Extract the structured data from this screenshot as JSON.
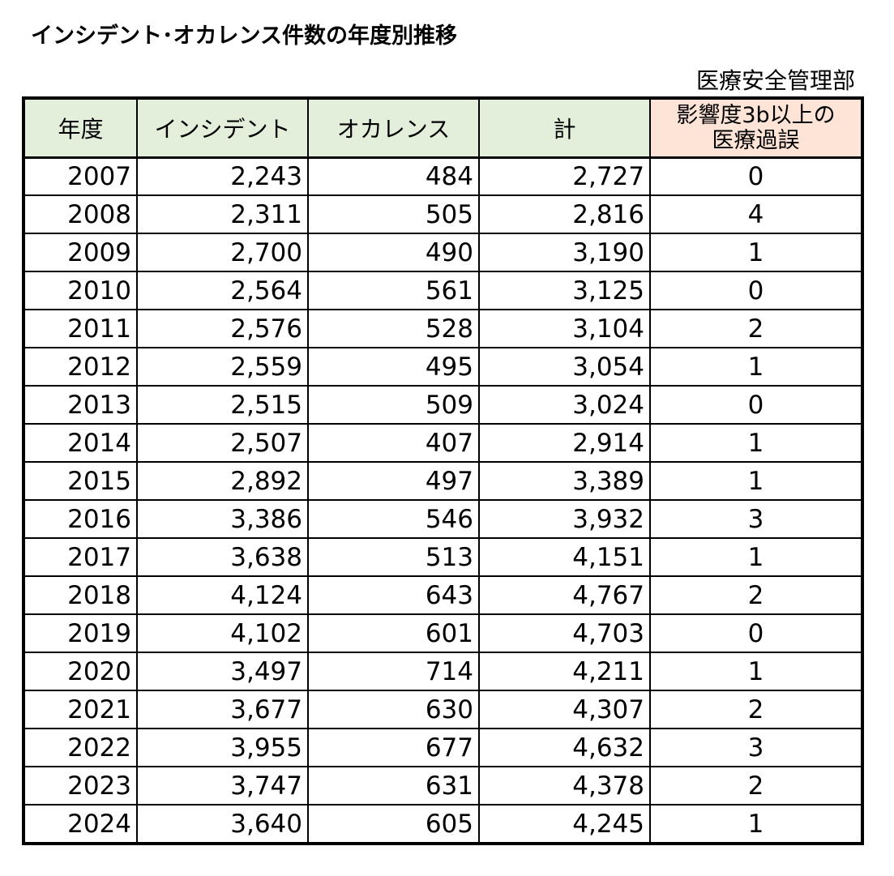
{
  "title": "インシデント･オカレンス件数の年度別推移",
  "department": "医療安全管理部",
  "table": {
    "headers": {
      "year": "年度",
      "incident": "インシデント",
      "occurrence": "オカレンス",
      "total": "計",
      "error_line1": "影響度3b以上の",
      "error_line2": "医療過誤"
    },
    "rows": [
      {
        "year": "2007",
        "incident": "2,243",
        "occurrence": "484",
        "total": "2,727",
        "error": "0"
      },
      {
        "year": "2008",
        "incident": "2,311",
        "occurrence": "505",
        "total": "2,816",
        "error": "4"
      },
      {
        "year": "2009",
        "incident": "2,700",
        "occurrence": "490",
        "total": "3,190",
        "error": "1"
      },
      {
        "year": "2010",
        "incident": "2,564",
        "occurrence": "561",
        "total": "3,125",
        "error": "0"
      },
      {
        "year": "2011",
        "incident": "2,576",
        "occurrence": "528",
        "total": "3,104",
        "error": "2"
      },
      {
        "year": "2012",
        "incident": "2,559",
        "occurrence": "495",
        "total": "3,054",
        "error": "1"
      },
      {
        "year": "2013",
        "incident": "2,515",
        "occurrence": "509",
        "total": "3,024",
        "error": "0"
      },
      {
        "year": "2014",
        "incident": "2,507",
        "occurrence": "407",
        "total": "2,914",
        "error": "1"
      },
      {
        "year": "2015",
        "incident": "2,892",
        "occurrence": "497",
        "total": "3,389",
        "error": "1"
      },
      {
        "year": "2016",
        "incident": "3,386",
        "occurrence": "546",
        "total": "3,932",
        "error": "3"
      },
      {
        "year": "2017",
        "incident": "3,638",
        "occurrence": "513",
        "total": "4,151",
        "error": "1"
      },
      {
        "year": "2018",
        "incident": "4,124",
        "occurrence": "643",
        "total": "4,767",
        "error": "2"
      },
      {
        "year": "2019",
        "incident": "4,102",
        "occurrence": "601",
        "total": "4,703",
        "error": "0"
      },
      {
        "year": "2020",
        "incident": "3,497",
        "occurrence": "714",
        "total": "4,211",
        "error": "1"
      },
      {
        "year": "2021",
        "incident": "3,677",
        "occurrence": "630",
        "total": "4,307",
        "error": "2"
      },
      {
        "year": "2022",
        "incident": "3,955",
        "occurrence": "677",
        "total": "4,632",
        "error": "3"
      },
      {
        "year": "2023",
        "incident": "3,747",
        "occurrence": "631",
        "total": "4,378",
        "error": "2"
      },
      {
        "year": "2024",
        "incident": "3,640",
        "occurrence": "605",
        "total": "4,245",
        "error": "1"
      }
    ]
  },
  "colors": {
    "header_green": "#e3efdb",
    "header_peach": "#fde4d6",
    "border": "#000000"
  }
}
